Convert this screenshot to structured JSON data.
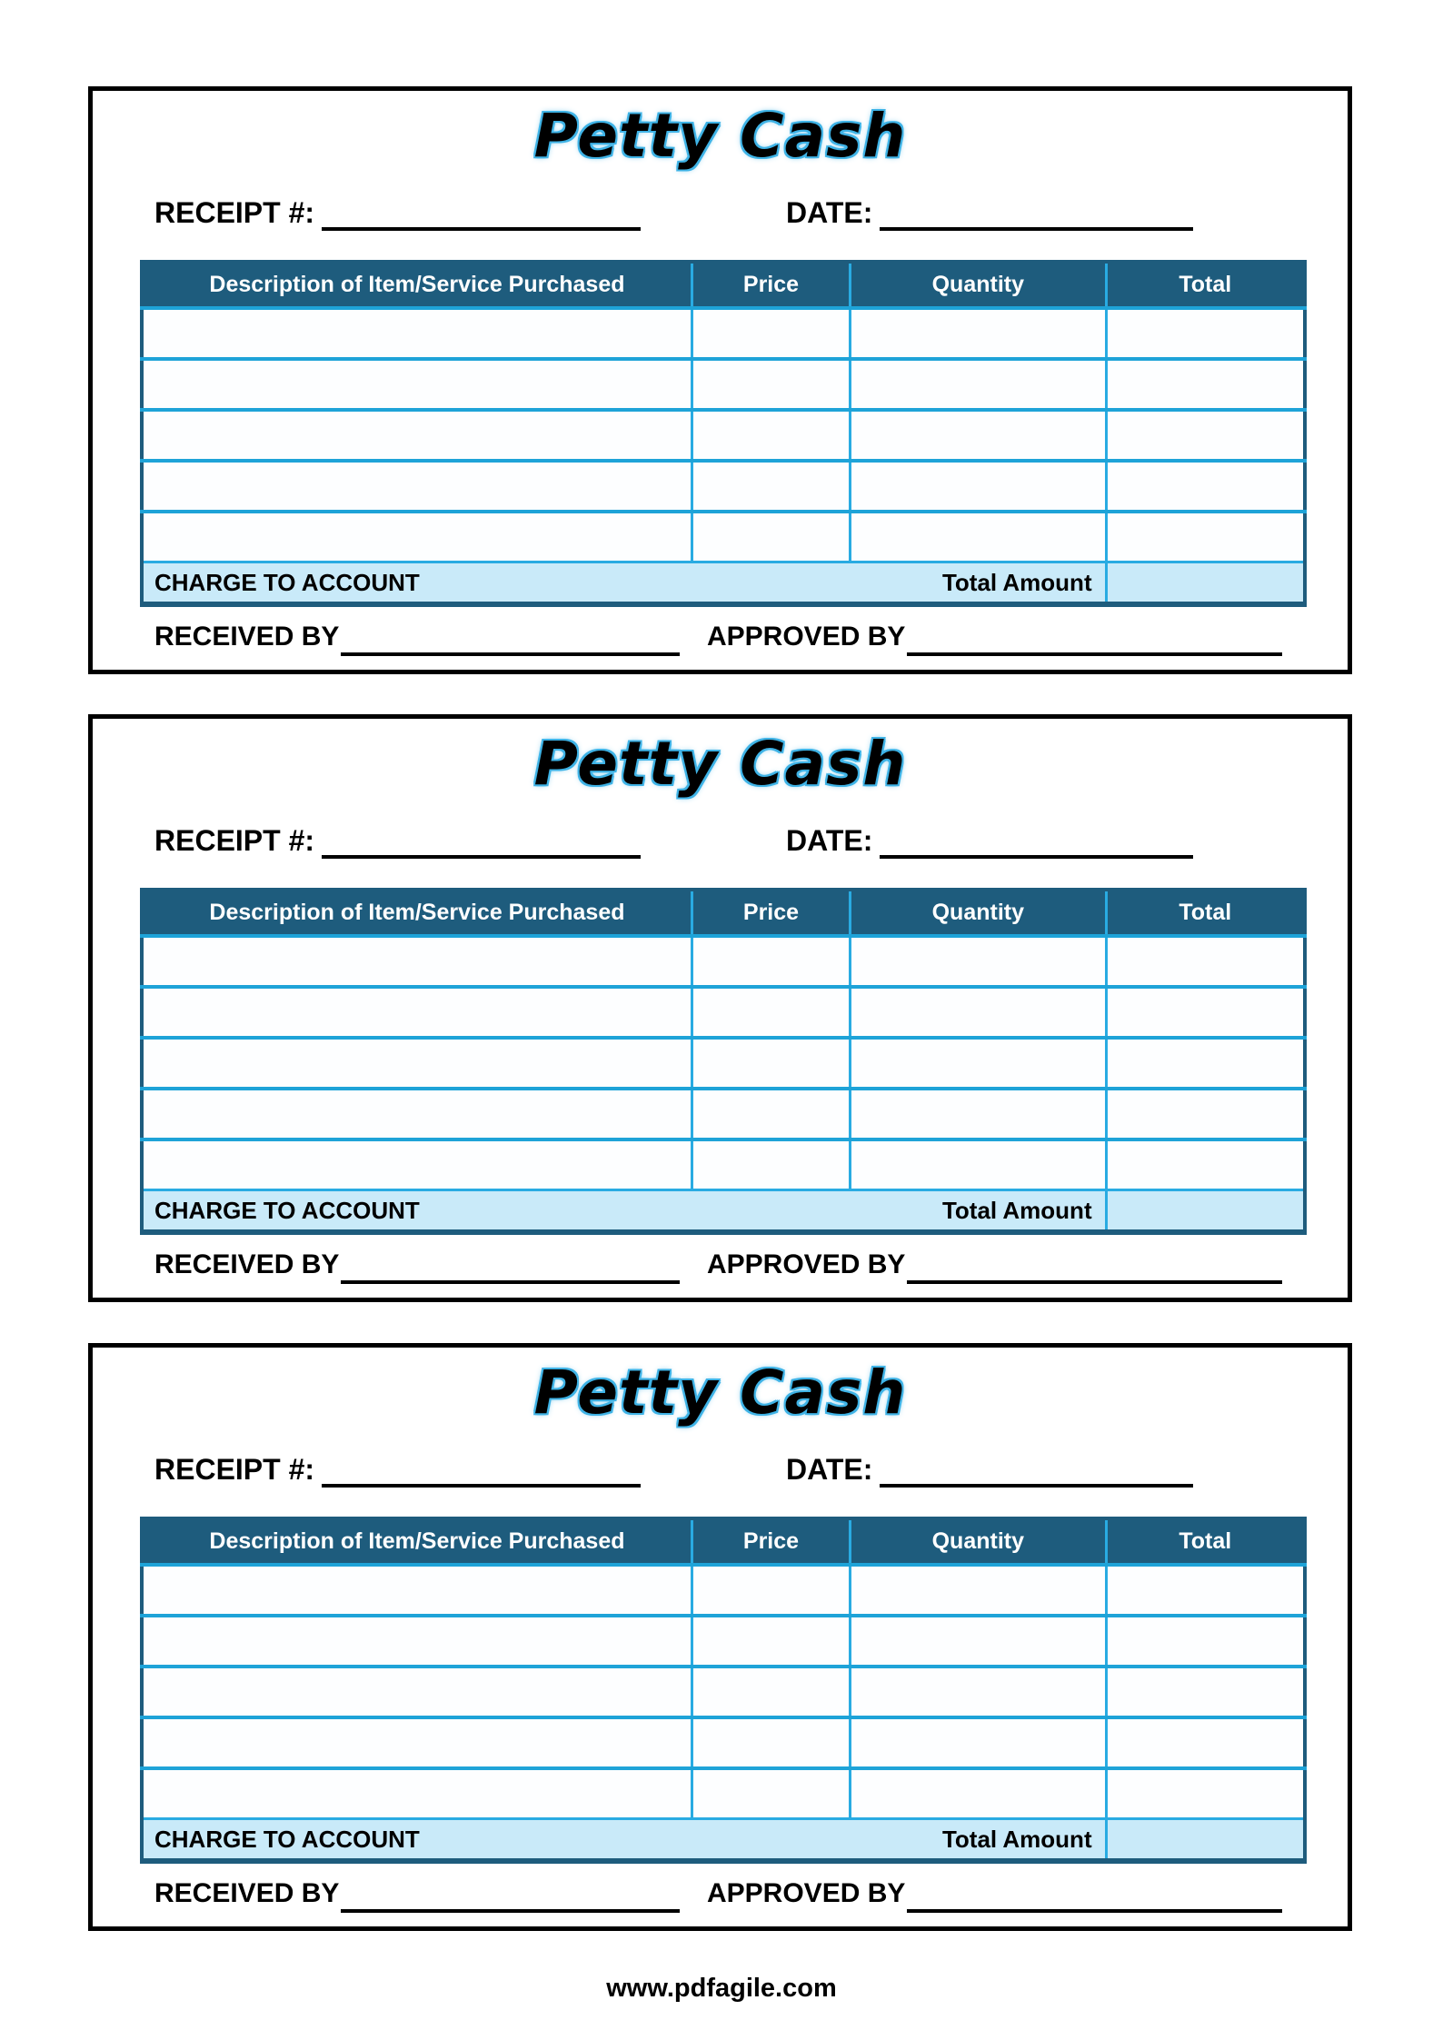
{
  "colors": {
    "table_header_bg": "#1e5c7d",
    "grid_vertical_line": "#29abe2",
    "grid_horizontal_line": "#1ea3d8",
    "footer_row_bg": "#c9eaf9",
    "title_fill": "#000000",
    "title_outline": "#3fb3e6",
    "box_border": "#000000"
  },
  "watermark": "www.pdfagile.com",
  "receipts": [
    {
      "title": "Petty Cash",
      "receipt_number_label": "RECEIPT #:",
      "receipt_number_value": "",
      "date_label": "DATE:",
      "date_value": "",
      "table": {
        "headers": [
          "Description of Item/Service Purchased",
          "Price",
          "Quantity",
          "Total"
        ],
        "empty_row_count": 5,
        "charge_label": "CHARGE TO ACCOUNT",
        "total_amount_label": "Total Amount",
        "total_amount_value": ""
      },
      "received_by_label": "RECEIVED BY",
      "approved_by_label": "APPROVED BY"
    },
    {
      "title": "Petty Cash",
      "receipt_number_label": "RECEIPT #:",
      "receipt_number_value": "",
      "date_label": "DATE:",
      "date_value": "",
      "table": {
        "headers": [
          "Description of Item/Service Purchased",
          "Price",
          "Quantity",
          "Total"
        ],
        "empty_row_count": 5,
        "charge_label": "CHARGE TO ACCOUNT",
        "total_amount_label": "Total Amount",
        "total_amount_value": ""
      },
      "received_by_label": "RECEIVED BY",
      "approved_by_label": "APPROVED BY"
    },
    {
      "title": "Petty Cash",
      "receipt_number_label": "RECEIPT #:",
      "receipt_number_value": "",
      "date_label": "DATE:",
      "date_value": "",
      "table": {
        "headers": [
          "Description of Item/Service Purchased",
          "Price",
          "Quantity",
          "Total"
        ],
        "empty_row_count": 5,
        "charge_label": "CHARGE TO ACCOUNT",
        "total_amount_label": "Total Amount",
        "total_amount_value": ""
      },
      "received_by_label": "RECEIVED BY",
      "approved_by_label": "APPROVED BY"
    }
  ]
}
